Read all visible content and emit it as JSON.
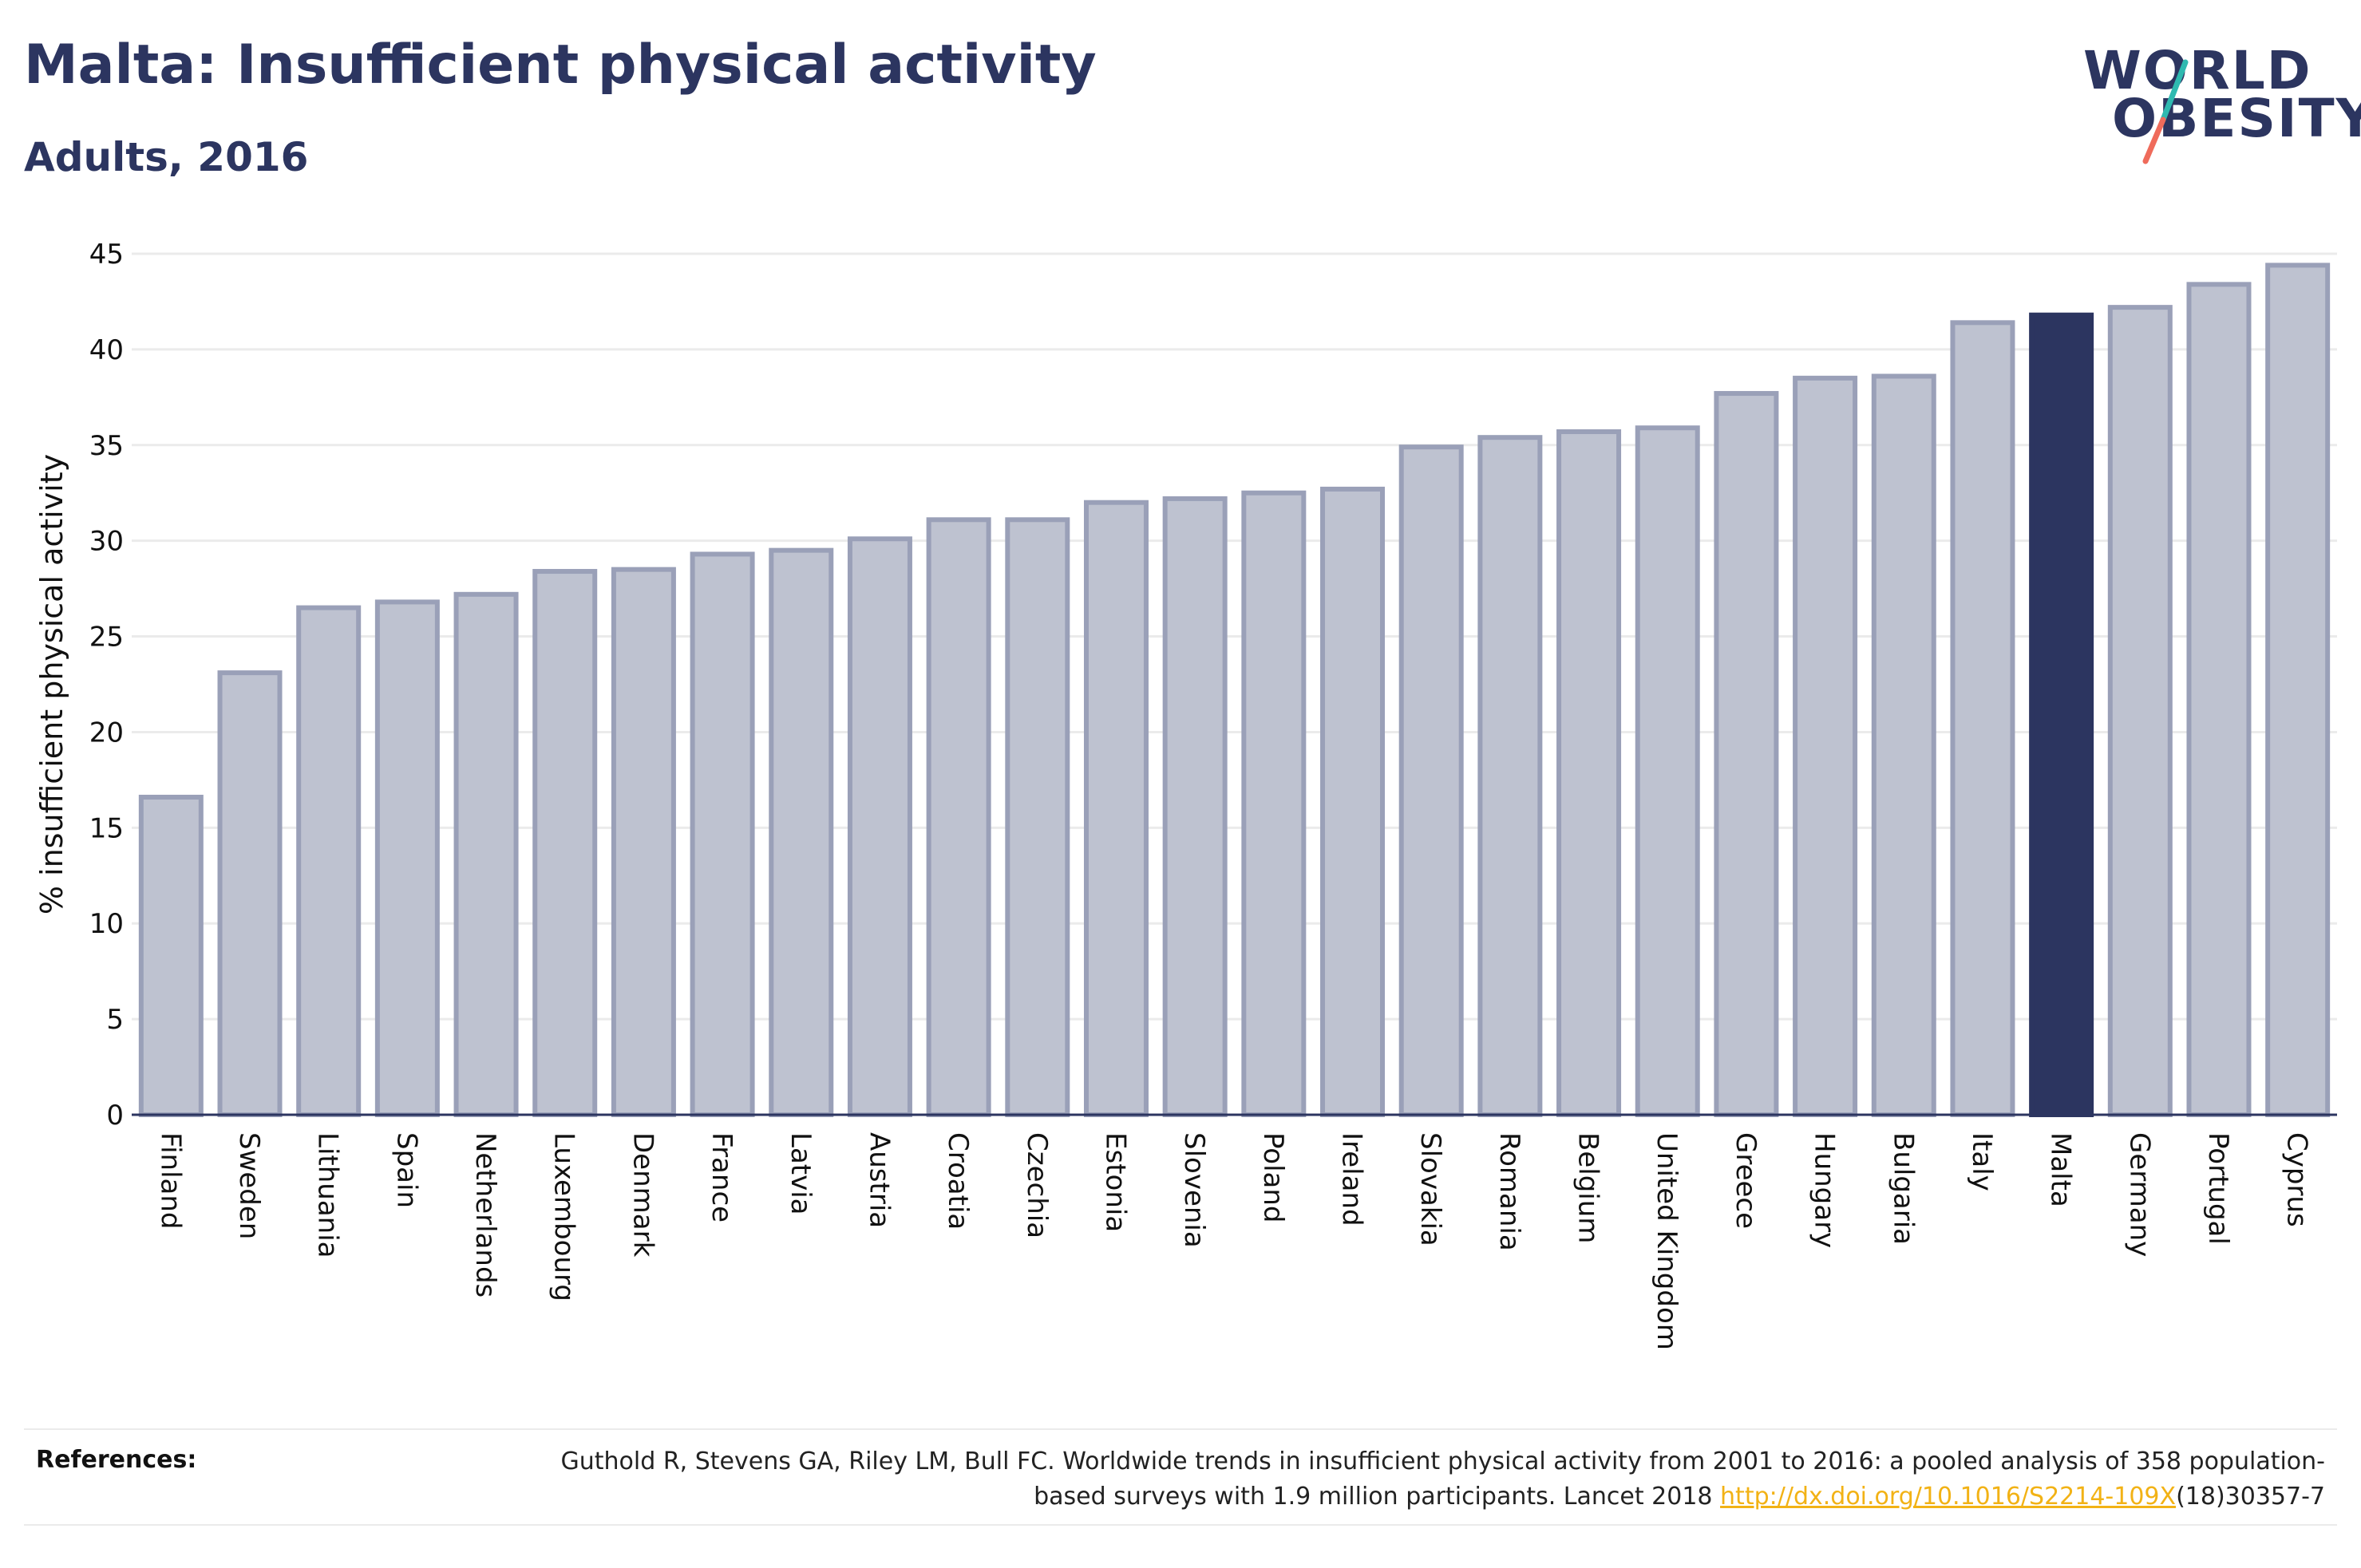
{
  "header": {
    "title": "Malta: Insufficient physical activity",
    "subtitle": "Adults, 2016"
  },
  "logo": {
    "line1": "WORLD",
    "line2": "OBESITY",
    "slash_colors": [
      "#2fb9b0",
      "#ef6b5b"
    ]
  },
  "colors": {
    "bar_default_fill": "#bec2d0",
    "bar_default_stroke": "#9aa0b8",
    "bar_highlight": "#2c3560",
    "gridline": "#ebebeb",
    "axis": "#2c3560"
  },
  "chart_data": {
    "type": "bar",
    "title": "Malta: Insufficient physical activity",
    "subtitle": "Adults, 2016",
    "xlabel": "",
    "ylabel": "% insufficient physical activity",
    "ylim": [
      0,
      45
    ],
    "yticks": [
      0,
      5,
      10,
      15,
      20,
      25,
      30,
      35,
      40,
      45
    ],
    "grid": true,
    "highlight": "Malta",
    "categories": [
      "Finland",
      "Sweden",
      "Lithuania",
      "Spain",
      "Netherlands",
      "Luxembourg",
      "Denmark",
      "France",
      "Latvia",
      "Austria",
      "Croatia",
      "Czechia",
      "Estonia",
      "Slovenia",
      "Poland",
      "Ireland",
      "Slovakia",
      "Romania",
      "Belgium",
      "United Kingdom",
      "Greece",
      "Hungary",
      "Bulgaria",
      "Italy",
      "Malta",
      "Germany",
      "Portugal",
      "Cyprus"
    ],
    "values": [
      16.6,
      23.1,
      26.5,
      26.8,
      27.2,
      28.4,
      28.5,
      29.3,
      29.5,
      30.1,
      31.1,
      31.1,
      32.0,
      32.2,
      32.5,
      32.7,
      34.9,
      35.4,
      35.7,
      35.9,
      37.7,
      38.5,
      38.6,
      41.4,
      41.8,
      42.2,
      43.4,
      44.4
    ]
  },
  "references": {
    "label": "References:",
    "text": "Guthold R, Stevens GA, Riley LM, Bull FC. Worldwide trends in insufficient physical activity from 2001 to 2016: a pooled analysis of 358 population-based surveys with 1.9 million participants. Lancet 2018 ",
    "link": "http://dx.doi.org/10.1016/S2214-109X",
    "suffix": "(18)30357-7"
  }
}
